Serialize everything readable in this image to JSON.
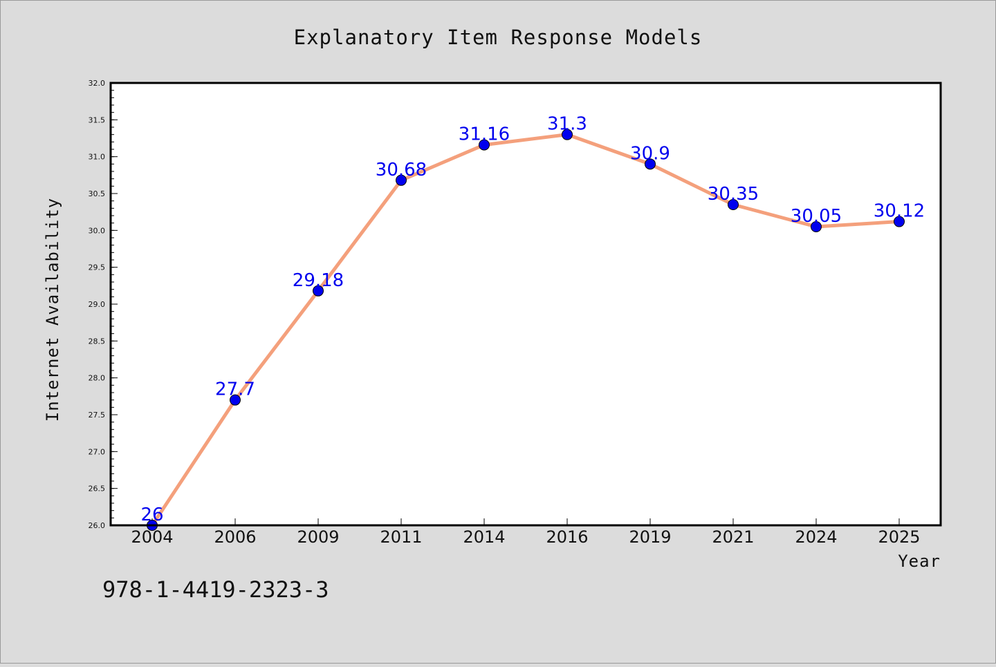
{
  "chart_data": {
    "type": "line",
    "title": "Explanatory Item Response Models",
    "xlabel": "Year",
    "ylabel": "Internet Availability",
    "categories": [
      "2004",
      "2006",
      "2009",
      "2011",
      "2014",
      "2016",
      "2019",
      "2021",
      "2024",
      "2025"
    ],
    "series": [
      {
        "values": [
          26,
          27.7,
          29.18,
          30.68,
          31.16,
          31.3,
          30.9,
          30.35,
          30.05,
          30.12
        ],
        "data_labels": [
          "26",
          "27.7",
          "29.18",
          "30.68",
          "31.16",
          "31.3",
          "30.9",
          "30.35",
          "30.05",
          "30.12"
        ],
        "line_color": "#f4a07c",
        "marker_color": "#0000ee"
      }
    ],
    "ylim": [
      26.0,
      32.0
    ],
    "y_ticks": [
      "26.0",
      "26.5",
      "27.0",
      "27.5",
      "28.0",
      "28.5",
      "29.0",
      "29.5",
      "30.0",
      "30.5",
      "31.0",
      "31.5",
      "32.0"
    ],
    "grid": false,
    "legend": "none"
  },
  "annotation": {
    "isbn": "978-1-4419-2323-3"
  },
  "colors": {
    "background": "#dcdcdc",
    "plot_area": "#ffffff",
    "line": "#f4a07c",
    "marker": "#0000ee",
    "data_label": "#0000ee"
  }
}
